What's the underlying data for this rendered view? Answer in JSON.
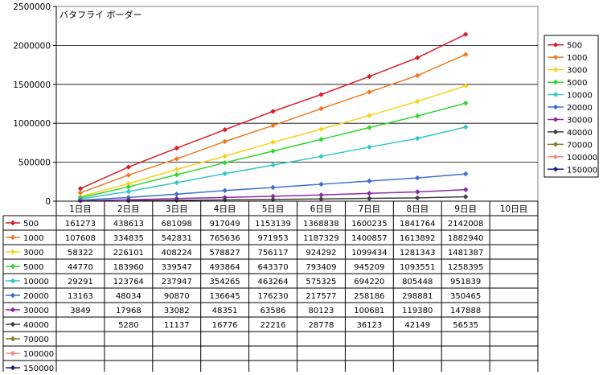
{
  "chart_data": {
    "type": "line",
    "title": "バタフライ ボーダー",
    "xlabel": "",
    "ylabel": "",
    "ylim": [
      0,
      2500000
    ],
    "y_ticks": [
      0,
      500000,
      1000000,
      1500000,
      2000000,
      2500000
    ],
    "y_tick_labels": [
      "0",
      "500000",
      "1000000",
      "1500000",
      "2000000",
      "2500000"
    ],
    "categories": [
      "1日目",
      "2日目",
      "3日目",
      "4日目",
      "5日目",
      "6日目",
      "7日目",
      "8日目",
      "9日目",
      "10日目"
    ],
    "grid": true,
    "legend_position": "right",
    "data_table": true,
    "series": [
      {
        "name": "500",
        "color": "#d8202a",
        "values": [
          161273,
          438613,
          681098,
          917049,
          1153139,
          1368838,
          1600235,
          1841764,
          2142008,
          null
        ]
      },
      {
        "name": "1000",
        "color": "#ee7b22",
        "values": [
          107608,
          334835,
          542831,
          765636,
          971953,
          1187329,
          1400857,
          1613892,
          1882940,
          null
        ]
      },
      {
        "name": "3000",
        "color": "#f7d21b",
        "values": [
          58322,
          226101,
          408224,
          578827,
          756117,
          924292,
          1099434,
          1281343,
          1481387,
          null
        ]
      },
      {
        "name": "5000",
        "color": "#2fd62f",
        "values": [
          44770,
          183960,
          339547,
          493864,
          643370,
          793409,
          945209,
          1093551,
          1258395,
          null
        ]
      },
      {
        "name": "10000",
        "color": "#35c5c8",
        "values": [
          29291,
          123764,
          237947,
          354265,
          463264,
          575325,
          694220,
          805448,
          951839,
          null
        ]
      },
      {
        "name": "20000",
        "color": "#3f6fd3",
        "values": [
          13163,
          48034,
          90870,
          136645,
          176230,
          217577,
          258186,
          298881,
          350465,
          null
        ]
      },
      {
        "name": "30000",
        "color": "#8e2aa6",
        "values": [
          3849,
          17968,
          33082,
          48351,
          63586,
          80123,
          100681,
          119380,
          147888,
          null
        ]
      },
      {
        "name": "40000",
        "color": "#404040",
        "values": [
          null,
          5280,
          11137,
          16776,
          22216,
          28778,
          36123,
          42149,
          56535,
          null
        ]
      },
      {
        "name": "70000",
        "color": "#7f7f1f",
        "values": [
          null,
          null,
          null,
          null,
          null,
          null,
          null,
          null,
          null,
          null
        ]
      },
      {
        "name": "100000",
        "color": "#f08a8a",
        "values": [
          null,
          null,
          null,
          null,
          null,
          null,
          null,
          null,
          null,
          null
        ]
      },
      {
        "name": "150000",
        "color": "#1b1f7a",
        "values": [
          null,
          null,
          null,
          null,
          null,
          null,
          null,
          null,
          null,
          null
        ]
      }
    ]
  }
}
